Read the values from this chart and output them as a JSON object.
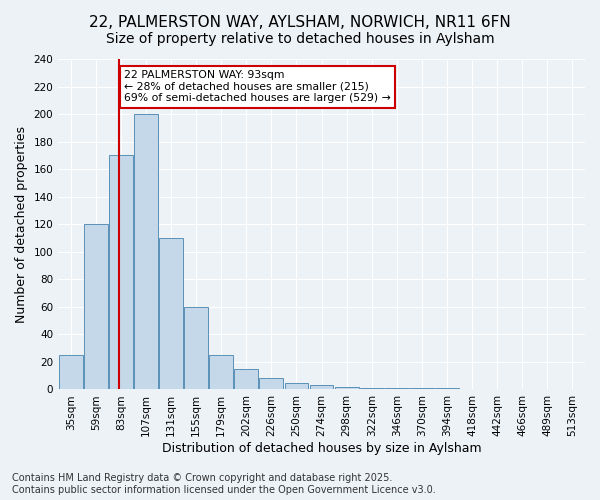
{
  "title": "22, PALMERSTON WAY, AYLSHAM, NORWICH, NR11 6FN",
  "subtitle": "Size of property relative to detached houses in Aylsham",
  "xlabel": "Distribution of detached houses by size in Aylsham",
  "ylabel": "Number of detached properties",
  "footer_line1": "Contains HM Land Registry data © Crown copyright and database right 2025.",
  "footer_line2": "Contains public sector information licensed under the Open Government Licence v3.0.",
  "bin_labels": [
    "35sqm",
    "59sqm",
    "83sqm",
    "107sqm",
    "131sqm",
    "155sqm",
    "179sqm",
    "202sqm",
    "226sqm",
    "250sqm",
    "274sqm",
    "298sqm",
    "322sqm",
    "346sqm",
    "370sqm",
    "394sqm",
    "418sqm",
    "442sqm",
    "466sqm",
    "489sqm",
    "513sqm"
  ],
  "bar_heights": [
    25,
    120,
    170,
    200,
    110,
    60,
    25,
    15,
    8,
    5,
    3,
    2,
    1,
    1,
    1,
    1,
    0,
    0,
    0,
    0,
    0
  ],
  "bar_color": "#c5d8ea",
  "bar_edge_color": "#5a90b8",
  "vline_color": "#cc0000",
  "annotation_text": "22 PALMERSTON WAY: 93sqm\n← 28% of detached houses are smaller (215)\n69% of semi-detached houses are larger (529) →",
  "annotation_box_color": "#cc0000",
  "annotation_text_color": "#000000",
  "ylim": [
    0,
    240
  ],
  "yticks": [
    0,
    20,
    40,
    60,
    80,
    100,
    120,
    140,
    160,
    180,
    200,
    220,
    240
  ],
  "bg_color": "#edf2f7",
  "plot_bg_color": "#edf2f7",
  "grid_color": "#ffffff",
  "title_fontsize": 11,
  "subtitle_fontsize": 10,
  "axis_label_fontsize": 9,
  "tick_fontsize": 7.5,
  "footer_fontsize": 7
}
